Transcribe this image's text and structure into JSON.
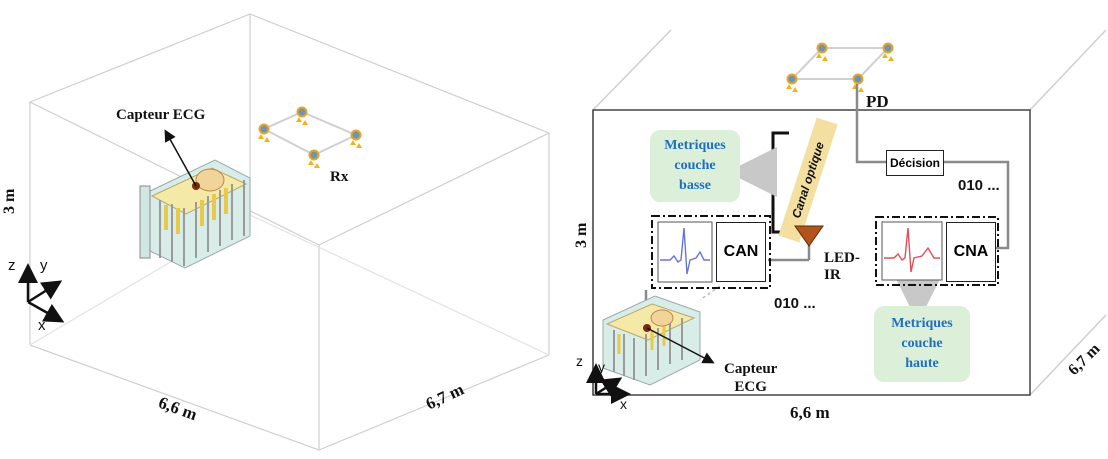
{
  "left_room": {
    "sensor_label": "Capteur ECG",
    "receiver_label": "Rx",
    "height_label": "3 m",
    "width_label": "6,6 m",
    "depth_label": "6,7 m",
    "axes": {
      "z": "z",
      "y": "y",
      "x": "x"
    }
  },
  "right_room": {
    "pd_label": "PD",
    "decision_label": "Décision",
    "bits_top": "010 ...",
    "bits_bottom": "010 ...",
    "canal_label": "Canal optique",
    "metric_low": [
      "Metriques",
      "couche",
      "basse"
    ],
    "metric_high": [
      "Metriques",
      "couche",
      "haute"
    ],
    "can_label": "CAN",
    "cna_label": "CNA",
    "led_label": [
      "LED-",
      "IR"
    ],
    "sensor_label": [
      "Capteur",
      "ECG"
    ],
    "height_label": "3 m",
    "width_label": "6,6 m",
    "depth_label": "6,7 m",
    "axes": {
      "z": "z",
      "y": "y",
      "x": "x"
    }
  },
  "colors": {
    "metric_bg": "#dcefd8",
    "metric_text": "#1f6fc0",
    "led": "#b5541a",
    "canal_bg": "#f3dfa0",
    "ecg_low": "#6b74d6",
    "ecg_high": "#e0505a",
    "photodiode_fill": "#6f93b5",
    "photodiode_ring": "#e8a624",
    "light_arrow": "#f2b31c"
  }
}
